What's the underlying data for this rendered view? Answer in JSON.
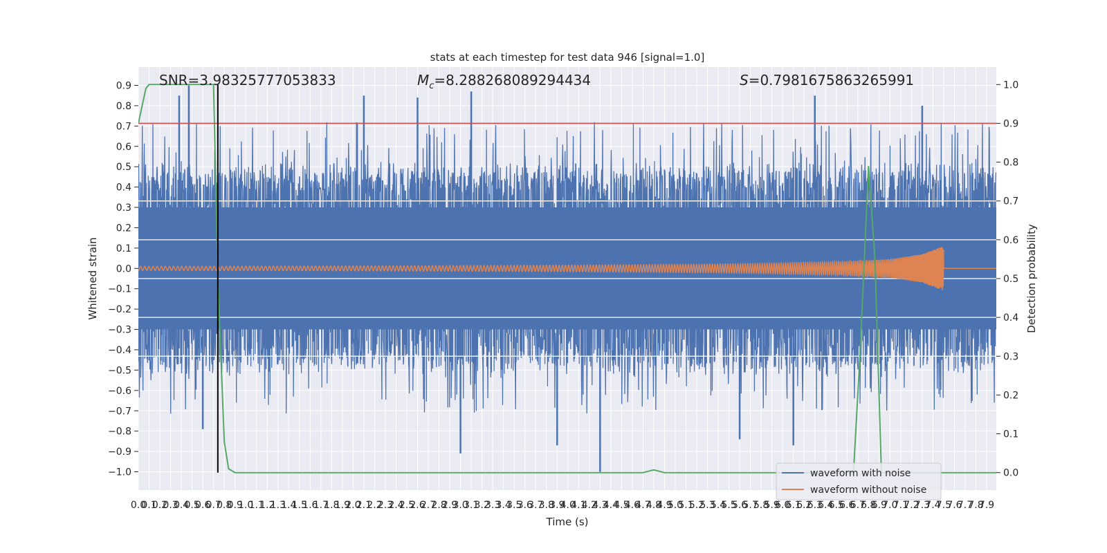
{
  "chart_data": {
    "type": "line",
    "title": "stats at each timestep for test data 946 [signal=1.0]",
    "xlabel": "Time (s)",
    "ylabel": "Whitened strain",
    "ylabel_right": "Detection probability",
    "xlim": [
      0.0,
      7.99
    ],
    "ylim": [
      -1.09,
      0.99
    ],
    "ylim_right": [
      -0.045,
      1.045
    ],
    "x_ticks": [
      "0.0",
      "0.1",
      "0.2",
      "0.3",
      "0.4",
      "0.5",
      "0.6",
      "0.7",
      "0.8",
      "0.9",
      "1.0",
      "1.1",
      "1.2",
      "1.3",
      "1.4",
      "1.5",
      "1.6",
      "1.7",
      "1.8",
      "1.9",
      "2.0",
      "2.1",
      "2.2",
      "2.3",
      "2.4",
      "2.5",
      "2.6",
      "2.7",
      "2.8",
      "2.9",
      "3.0",
      "3.1",
      "3.2",
      "3.3",
      "3.4",
      "3.5",
      "3.6",
      "3.7",
      "3.8",
      "3.9",
      "4.0",
      "4.1",
      "4.2",
      "4.3",
      "4.4",
      "4.5",
      "4.6",
      "4.7",
      "4.8",
      "4.9",
      "5.0",
      "5.1",
      "5.2",
      "5.3",
      "5.4",
      "5.5",
      "5.6",
      "5.7",
      "5.8",
      "5.9",
      "6.0",
      "6.1",
      "6.2",
      "6.3",
      "6.4",
      "6.5",
      "6.6",
      "6.7",
      "6.8",
      "6.9",
      "7.0",
      "7.1",
      "7.2",
      "7.3",
      "7.4",
      "7.5",
      "7.6",
      "7.7",
      "7.8",
      "7.9"
    ],
    "y_ticks": [
      "0.9",
      "0.8",
      "0.7",
      "0.6",
      "0.5",
      "0.4",
      "0.3",
      "0.2",
      "0.1",
      "0.0",
      "−0.1",
      "−0.2",
      "−0.3",
      "−0.4",
      "−0.5",
      "−0.6",
      "−0.7",
      "−0.8",
      "−0.9",
      "−1.0"
    ],
    "y_ticks_right": [
      "1.0",
      "0.9",
      "0.8",
      "0.7",
      "0.6",
      "0.5",
      "0.4",
      "0.3",
      "0.2",
      "0.1",
      "0.0"
    ],
    "annotations": {
      "snr": "SNR=3.98325777053833",
      "mc_symbol": "M",
      "mc_sub": "c",
      "mc_value": "=8.288268089294434",
      "s_symbol": "S",
      "s_value": "=0.7981675863265991"
    },
    "legend": {
      "placement": "lower-right",
      "entries": [
        "waveform with noise",
        "waveform without noise"
      ]
    },
    "series": [
      {
        "name": "waveform with noise",
        "axis": "left",
        "color": "#4c72b0",
        "amplitude_band": [
          -0.5,
          0.5
        ],
        "spikes": [
          {
            "x": 0.38,
            "y": 0.85
          },
          {
            "x": 0.47,
            "y": 0.9
          },
          {
            "x": 2.1,
            "y": 0.85
          },
          {
            "x": 2.6,
            "y": 0.84
          },
          {
            "x": 3.1,
            "y": 0.87
          },
          {
            "x": 6.3,
            "y": 0.85
          },
          {
            "x": 7.3,
            "y": 0.8
          },
          {
            "x": 0.6,
            "y": -0.79
          },
          {
            "x": 3.0,
            "y": -0.91
          },
          {
            "x": 3.9,
            "y": -0.87
          },
          {
            "x": 4.3,
            "y": -1.0
          },
          {
            "x": 5.6,
            "y": -0.84
          },
          {
            "x": 6.1,
            "y": -0.87
          }
        ]
      },
      {
        "name": "waveform without noise",
        "axis": "left",
        "color": "#dd8452",
        "envelope": {
          "x": [
            0.0,
            2.0,
            4.0,
            5.5,
            6.5,
            7.0,
            7.3,
            7.5
          ],
          "y": [
            0.01,
            0.012,
            0.016,
            0.022,
            0.032,
            0.045,
            0.07,
            0.11
          ]
        },
        "cutoff_x": 7.5
      },
      {
        "name": "detection probability",
        "axis": "right",
        "color": "#55a868",
        "x": [
          0.0,
          0.07,
          0.1,
          0.15,
          0.7,
          0.74,
          0.8,
          0.84,
          0.9,
          4.7,
          4.8,
          4.9,
          6.66,
          6.72,
          6.8,
          6.86,
          6.92,
          7.0,
          7.99
        ],
        "y": [
          0.9,
          0.99,
          1.0,
          1.0,
          1.0,
          0.5,
          0.08,
          0.01,
          0.0,
          0.0,
          0.007,
          0.0,
          0.0,
          0.3,
          0.79,
          0.55,
          0.0,
          0.0,
          0.0
        ]
      }
    ],
    "threshold_line": {
      "axis": "right",
      "y": 0.9,
      "color": "#c44e52"
    },
    "vertical_marker": {
      "x": 0.74,
      "color": "#000000"
    },
    "grid": true,
    "grid_right_axis": [
      0.7,
      0.6,
      0.5,
      0.4,
      0.3
    ]
  }
}
